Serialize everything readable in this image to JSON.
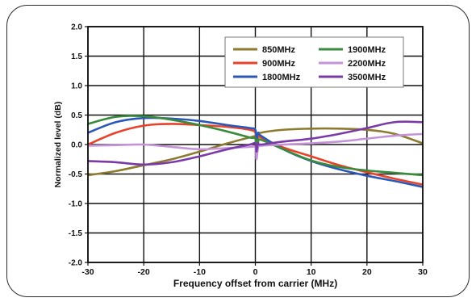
{
  "chart_data": {
    "type": "line",
    "title": "",
    "xlabel": "Frequency offset from carrier (MHz)",
    "ylabel": "Normalized level (dB)",
    "xlim": [
      -30,
      30
    ],
    "ylim": [
      -2.0,
      2.0
    ],
    "x_ticks": [
      -30,
      -20,
      -10,
      0,
      10,
      20,
      30
    ],
    "x_tick_labels": [
      "-30",
      "-20",
      "-10",
      "0",
      "10",
      "20",
      "30"
    ],
    "y_ticks": [
      2.0,
      1.5,
      1.0,
      0.5,
      0.0,
      -0.5,
      -1.0,
      -1.5,
      -2.0
    ],
    "y_tick_labels": [
      "2.0",
      "1.5",
      "1.0",
      "0.5",
      "0.0",
      "-0.5",
      "-1.0",
      "-1.5",
      "-2.0"
    ],
    "grid": true,
    "legend_position": "top-right",
    "series": [
      {
        "name": "850MHz",
        "color": "#8c7a2e",
        "x": [
          -30,
          -25,
          -20,
          -15,
          -10,
          -5,
          -1,
          0,
          0.2,
          0.5,
          1,
          5,
          10,
          15,
          20,
          25,
          30
        ],
        "y": [
          -0.52,
          -0.45,
          -0.35,
          -0.25,
          -0.12,
          0.02,
          0.12,
          0.12,
          -0.1,
          0.15,
          0.2,
          0.25,
          0.27,
          0.27,
          0.25,
          0.18,
          0.02
        ]
      },
      {
        "name": "900MHz",
        "color": "#e8422a",
        "x": [
          -30,
          -25,
          -20,
          -15,
          -10,
          -5,
          -1,
          0,
          0.2,
          0.5,
          1,
          5,
          10,
          15,
          20,
          25,
          30
        ],
        "y": [
          0.0,
          0.2,
          0.32,
          0.35,
          0.33,
          0.3,
          0.25,
          0.2,
          0.05,
          0.15,
          0.12,
          -0.05,
          -0.2,
          -0.35,
          -0.47,
          -0.58,
          -0.68
        ]
      },
      {
        "name": "1800MHz",
        "color": "#2b58b8",
        "x": [
          -30,
          -25,
          -20,
          -15,
          -10,
          -5,
          -1,
          0,
          0.2,
          0.5,
          1,
          5,
          10,
          15,
          20,
          25,
          30
        ],
        "y": [
          0.2,
          0.38,
          0.45,
          0.44,
          0.4,
          0.33,
          0.28,
          0.25,
          0.1,
          0.2,
          0.15,
          -0.08,
          -0.28,
          -0.42,
          -0.53,
          -0.62,
          -0.72
        ]
      },
      {
        "name": "1900MHz",
        "color": "#3a8a3c",
        "x": [
          -30,
          -25,
          -20,
          -15,
          -10,
          -5,
          -1,
          0,
          0.2,
          0.5,
          1,
          5,
          10,
          15,
          20,
          25,
          30
        ],
        "y": [
          0.35,
          0.47,
          0.48,
          0.42,
          0.33,
          0.22,
          0.12,
          0.1,
          -0.05,
          0.05,
          0.08,
          -0.08,
          -0.27,
          -0.38,
          -0.44,
          -0.48,
          -0.52
        ]
      },
      {
        "name": "2200MHz",
        "color": "#c493d8",
        "x": [
          -30,
          -25,
          -20,
          -15,
          -10,
          -5,
          -1,
          0,
          0.2,
          0.5,
          1,
          5,
          10,
          15,
          20,
          25,
          30
        ],
        "y": [
          -0.02,
          -0.01,
          0.0,
          -0.04,
          -0.08,
          -0.06,
          -0.04,
          -0.05,
          -0.25,
          -0.05,
          -0.02,
          0.0,
          0.02,
          0.05,
          0.1,
          0.15,
          0.18
        ]
      },
      {
        "name": "3500MHz",
        "color": "#7a3aa8",
        "x": [
          -30,
          -25,
          -20,
          -15,
          -10,
          -5,
          -1,
          0,
          0.2,
          0.5,
          1,
          5,
          10,
          15,
          20,
          25,
          30
        ],
        "y": [
          -0.28,
          -0.3,
          -0.34,
          -0.3,
          -0.2,
          -0.08,
          0.0,
          0.02,
          -0.12,
          0.02,
          0.0,
          0.05,
          0.1,
          0.18,
          0.28,
          0.38,
          0.38
        ]
      }
    ]
  }
}
